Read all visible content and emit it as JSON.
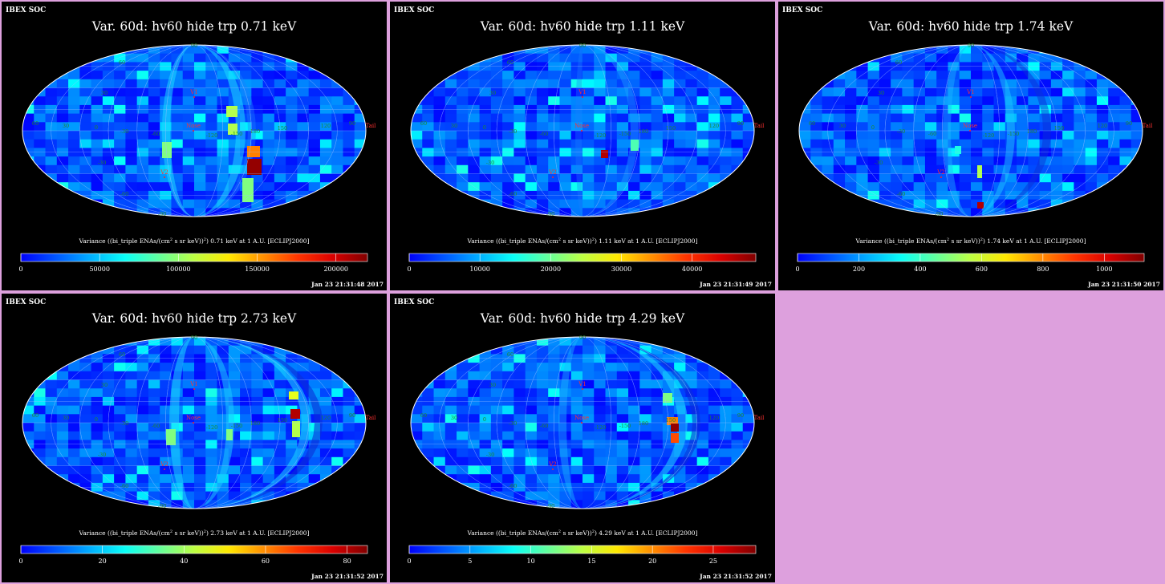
{
  "window": {
    "background_color": "#dda0dd"
  },
  "chart_data": [
    {
      "type": "heatmap",
      "projection": "mollweide",
      "header": "IBEX SOC",
      "title": "Var. 60d: hv60 hide trp 0.71 keV",
      "colorbar_label_pre": "Variance ((bi_triple ENAs/(cm",
      "colorbar_label_sup": "2",
      "colorbar_label_post": " s sr keV))",
      "colorbar_label_sup2": "2",
      "colorbar_label_tail": ") 0.71 keV at 1 A.U. [ECLIPJ2000]",
      "scale_max": 220000,
      "ticks": [
        0,
        50000,
        100000,
        150000,
        200000
      ],
      "tick_labels": [
        "0",
        "50000",
        "100000",
        "150000",
        "200000"
      ],
      "timestamp": "Jan 23 21:31:48 2017",
      "map_labels": {
        "v1": "V1",
        "v2": "V2",
        "nose": "Nose",
        "tail": "Tail",
        "lon": [
          "60",
          "30",
          "0",
          "-30",
          "-60",
          "-90",
          "-120",
          "-150",
          "180",
          "150",
          "120",
          "90"
        ],
        "lat": [
          "30",
          "-30",
          "60",
          "-60",
          "90",
          "-90"
        ]
      }
    },
    {
      "type": "heatmap",
      "projection": "mollweide",
      "header": "IBEX SOC",
      "title": "Var. 60d: hv60 hide trp 1.11 keV",
      "colorbar_label_pre": "Variance ((bi_triple ENAs/(cm",
      "colorbar_label_sup": "2",
      "colorbar_label_post": " s sr keV))",
      "colorbar_label_sup2": "2",
      "colorbar_label_tail": ") 1.11 keV at 1 A.U. [ECLIPJ2000]",
      "scale_max": 49000,
      "ticks": [
        0,
        10000,
        20000,
        30000,
        40000
      ],
      "tick_labels": [
        "0",
        "10000",
        "20000",
        "30000",
        "40000"
      ],
      "timestamp": "Jan 23 21:31:49 2017",
      "map_labels": {
        "v1": "V1",
        "v2": "V2",
        "nose": "Nose",
        "tail": "Tail",
        "lon": [
          "60",
          "30",
          "0",
          "-30",
          "-60",
          "-90",
          "-120",
          "-150",
          "180",
          "150",
          "120",
          "90"
        ],
        "lat": [
          "30",
          "-30",
          "60",
          "-60",
          "90",
          "-90"
        ]
      }
    },
    {
      "type": "heatmap",
      "projection": "mollweide",
      "header": "IBEX SOC",
      "title": "Var. 60d: hv60 hide trp 1.74 keV",
      "colorbar_label_pre": "Variance ((bi_triple ENAs/(cm",
      "colorbar_label_sup": "2",
      "colorbar_label_post": " s sr keV))",
      "colorbar_label_sup2": "2",
      "colorbar_label_tail": ") 1.74 keV at 1 A.U. [ECLIPJ2000]",
      "scale_max": 1130,
      "ticks": [
        0,
        200,
        400,
        600,
        800,
        1000
      ],
      "tick_labels": [
        "0",
        "200",
        "400",
        "600",
        "800",
        "1000"
      ],
      "timestamp": "Jan 23 21:31:50 2017",
      "map_labels": {
        "v1": "V1",
        "v2": "V2",
        "nose": "Nose",
        "tail": "Tail",
        "lon": [
          "60",
          "30",
          "0",
          "-30",
          "-60",
          "-90",
          "-120",
          "-150",
          "180",
          "150",
          "120",
          "90"
        ],
        "lat": [
          "30",
          "-30",
          "60",
          "-60",
          "90",
          "-90"
        ]
      }
    },
    {
      "type": "heatmap",
      "projection": "mollweide",
      "header": "IBEX SOC",
      "title": "Var. 60d: hv60 hide trp 2.73 keV",
      "colorbar_label_pre": "Variance ((bi_triple ENAs/(cm",
      "colorbar_label_sup": "2",
      "colorbar_label_post": " s sr keV))",
      "colorbar_label_sup2": "2",
      "colorbar_label_tail": ") 2.73 keV at 1 A.U. [ECLIPJ2000]",
      "scale_max": 85,
      "ticks": [
        0,
        20,
        40,
        60,
        80
      ],
      "tick_labels": [
        "0",
        "20",
        "40",
        "60",
        "80"
      ],
      "timestamp": "Jan 23 21:31:52 2017",
      "map_labels": {
        "v1": "V1",
        "v2": "V2",
        "nose": "Nose",
        "tail": "Tail",
        "lon": [
          "60",
          "30",
          "0",
          "-30",
          "-60",
          "-90",
          "-120",
          "-150",
          "180",
          "150",
          "120",
          "90"
        ],
        "lat": [
          "30",
          "-30",
          "60",
          "-60",
          "90",
          "-90"
        ]
      }
    },
    {
      "type": "heatmap",
      "projection": "mollweide",
      "header": "IBEX SOC",
      "title": "Var. 60d: hv60 hide trp 4.29 keV",
      "colorbar_label_pre": "Variance ((bi_triple ENAs/(cm",
      "colorbar_label_sup": "2",
      "colorbar_label_post": " s sr keV))",
      "colorbar_label_sup2": "2",
      "colorbar_label_tail": ") 4.29 keV at 1 A.U. [ECLIPJ2000]",
      "scale_max": 28.5,
      "ticks": [
        0,
        5,
        10,
        15,
        20,
        25
      ],
      "tick_labels": [
        "0",
        "5",
        "10",
        "15",
        "20",
        "25"
      ],
      "timestamp": "Jan 23 21:31:52 2017",
      "map_labels": {
        "v1": "V1",
        "v2": "V2",
        "nose": "Nose",
        "tail": "Tail",
        "lon": [
          "60",
          "30",
          "0",
          "-30",
          "-60",
          "-90",
          "-120",
          "-150",
          "180",
          "150",
          "120",
          "90"
        ],
        "lat": [
          "30",
          "-30",
          "60",
          "-60",
          "90",
          "-90"
        ]
      }
    }
  ]
}
